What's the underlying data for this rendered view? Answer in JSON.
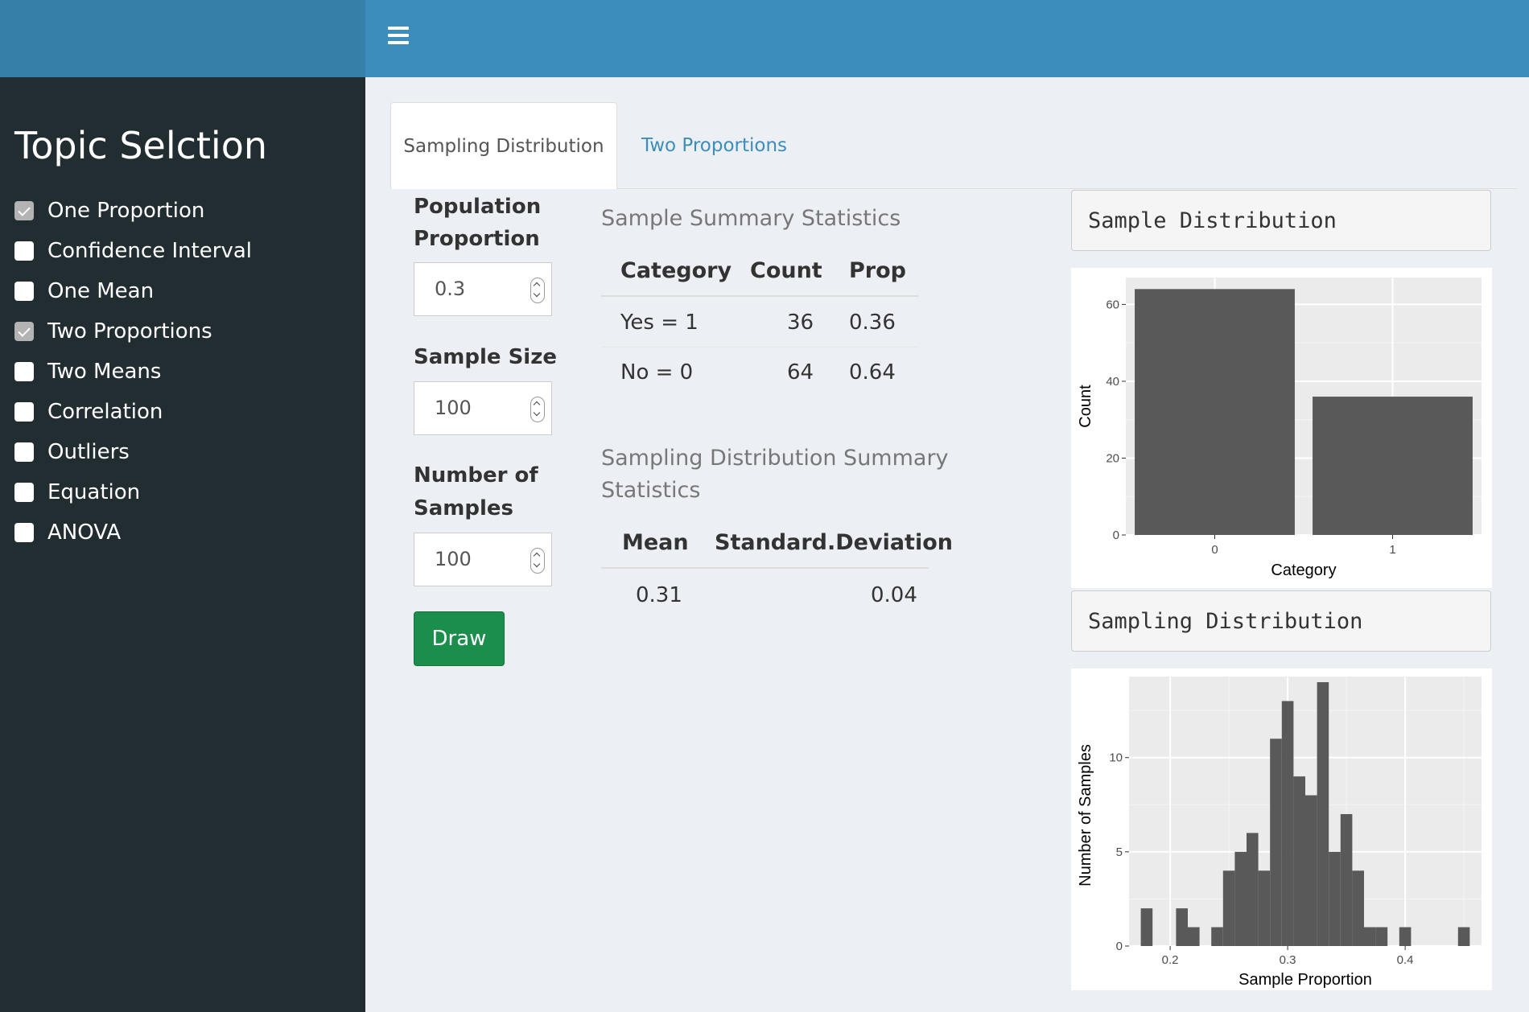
{
  "header": {
    "menu_icon": "hamburger-icon",
    "brand_color": "#3c8dbc"
  },
  "sidebar": {
    "title": "Topic Selction",
    "items": [
      {
        "label": "One Proportion",
        "checked": true
      },
      {
        "label": "Confidence Interval",
        "checked": false
      },
      {
        "label": "One Mean",
        "checked": false
      },
      {
        "label": "Two Proportions",
        "checked": true
      },
      {
        "label": "Two Means",
        "checked": false
      },
      {
        "label": "Correlation",
        "checked": false
      },
      {
        "label": "Outliers",
        "checked": false
      },
      {
        "label": "Equation",
        "checked": false
      },
      {
        "label": "ANOVA",
        "checked": false
      }
    ]
  },
  "tabs": [
    {
      "label": "Sampling Distribution",
      "active": true
    },
    {
      "label": "Two Proportions",
      "active": false
    }
  ],
  "controls": {
    "population_label_1": "Population",
    "population_label_2": "Proportion",
    "population_value": "0.3",
    "sample_size_label": "Sample Size",
    "sample_size_value": "100",
    "num_samples_label_1": "Number of",
    "num_samples_label_2": "Samples",
    "num_samples_value": "100",
    "draw_label": "Draw"
  },
  "sample_stats": {
    "title": "Sample Summary Statistics",
    "headers": [
      "Category",
      "Count",
      "Prop"
    ],
    "rows": [
      [
        "Yes = 1",
        "36",
        "0.36"
      ],
      [
        "No = 0",
        "64",
        "0.64"
      ]
    ]
  },
  "sampling_stats": {
    "title_line1": "Sampling Distribution Summary",
    "title_line2": "Statistics",
    "headers": [
      "Mean",
      "Standard.Deviation"
    ],
    "rows": [
      [
        "0.31",
        "0.04"
      ]
    ]
  },
  "panels": {
    "sample_title": "Sample Distribution",
    "sampling_title": "Sampling Distribution"
  },
  "chart_data": [
    {
      "type": "bar",
      "categories": [
        "0",
        "1"
      ],
      "values": [
        64,
        36
      ],
      "xlabel": "Category",
      "ylabel": "Count",
      "yticks": [
        "0",
        "20",
        "40",
        "60"
      ],
      "ylim": [
        0,
        67
      ],
      "grid": true,
      "bar_color": "#595959"
    },
    {
      "type": "bar",
      "subtype": "histogram",
      "xlabel": "Sample Proportion",
      "ylabel": "Number of Samples",
      "xticks": [
        "0.2",
        "0.3",
        "0.4"
      ],
      "yticks": [
        "0",
        "5",
        "10"
      ],
      "xlim": [
        0.165,
        0.465
      ],
      "ylim": [
        0,
        14.3
      ],
      "grid": true,
      "bar_color": "#595959",
      "bins": [
        {
          "x0": 0.175,
          "x1": 0.185,
          "count": 2
        },
        {
          "x0": 0.205,
          "x1": 0.215,
          "count": 2
        },
        {
          "x0": 0.215,
          "x1": 0.225,
          "count": 1
        },
        {
          "x0": 0.235,
          "x1": 0.245,
          "count": 1
        },
        {
          "x0": 0.245,
          "x1": 0.255,
          "count": 4
        },
        {
          "x0": 0.255,
          "x1": 0.265,
          "count": 5
        },
        {
          "x0": 0.265,
          "x1": 0.275,
          "count": 6
        },
        {
          "x0": 0.275,
          "x1": 0.285,
          "count": 4
        },
        {
          "x0": 0.285,
          "x1": 0.295,
          "count": 11
        },
        {
          "x0": 0.295,
          "x1": 0.305,
          "count": 13
        },
        {
          "x0": 0.305,
          "x1": 0.315,
          "count": 9
        },
        {
          "x0": 0.315,
          "x1": 0.325,
          "count": 8
        },
        {
          "x0": 0.325,
          "x1": 0.335,
          "count": 14
        },
        {
          "x0": 0.335,
          "x1": 0.345,
          "count": 5
        },
        {
          "x0": 0.345,
          "x1": 0.355,
          "count": 7
        },
        {
          "x0": 0.355,
          "x1": 0.365,
          "count": 4
        },
        {
          "x0": 0.365,
          "x1": 0.375,
          "count": 1
        },
        {
          "x0": 0.375,
          "x1": 0.385,
          "count": 1
        },
        {
          "x0": 0.395,
          "x1": 0.405,
          "count": 1
        },
        {
          "x0": 0.445,
          "x1": 0.455,
          "count": 1
        }
      ]
    }
  ]
}
